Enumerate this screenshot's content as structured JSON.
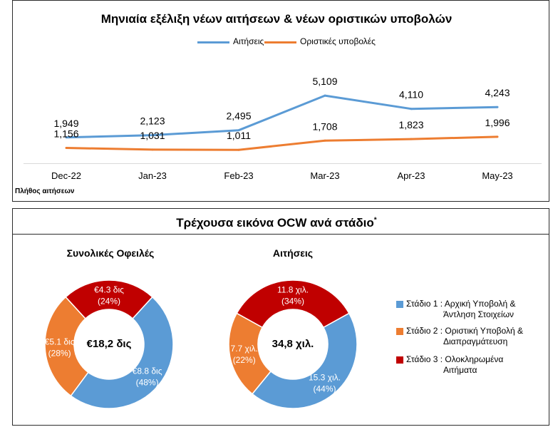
{
  "line_chart": {
    "title": "Μηνιαία εξέλιξη νέων αιτήσεων & νέων οριστικών υποβολών",
    "ylabel": "Πλήθος αιτήσεων",
    "legend": [
      "Αιτήσεις",
      "Οριστικές υποβολές"
    ],
    "colors": {
      "applications": "#5b9bd5",
      "submissions": "#ed7d31"
    }
  },
  "donut_section": {
    "title": "Τρέχουσα εικόνα OCW ανά στάδιο",
    "title_mark": "*",
    "left": {
      "title": "Συνολικές Οφειλές",
      "center": "€18,2 δις"
    },
    "right": {
      "title": "Αιτήσεις",
      "center": "34,8 χιλ."
    },
    "legend": [
      {
        "label": "Στάδιο 1 : Αρχική Υποβολή & Άντληση Στοιχείων",
        "lines": [
          "Στάδιο 1 : Αρχική Υποβολή &",
          "Άντληση Στοιχείων"
        ],
        "color": "#5b9bd5"
      },
      {
        "label": "Στάδιο 2 : Οριστική Υποβολή & Διαπραγμάτευση",
        "lines": [
          "Στάδιο 2 : Οριστική Υποβολή &",
          "Διαπραγμάτευση"
        ],
        "color": "#ed7d31"
      },
      {
        "label": "Στάδιο 3 : Ολοκληρωμένα Αιτήματα",
        "lines": [
          "Στάδιο 3 : Ολοκληρωμένα",
          "Αιτήματα"
        ],
        "color": "#c00000"
      }
    ]
  },
  "chart_data": [
    {
      "type": "line",
      "title": "Μηνιαία εξέλιξη νέων αιτήσεων & νέων οριστικών υποβολών",
      "xlabel": "",
      "ylabel": "Πλήθος αιτήσεων",
      "categories": [
        "Dec-22",
        "Jan-23",
        "Feb-23",
        "Mar-23",
        "Apr-23",
        "May-23"
      ],
      "series": [
        {
          "name": "Αιτήσεις",
          "values": [
            1949,
            2123,
            2495,
            5109,
            4110,
            4243
          ],
          "labels": [
            "1,949",
            "2,123",
            "2,495",
            "5,109",
            "4,110",
            "4,243"
          ],
          "color": "#5b9bd5"
        },
        {
          "name": "Οριστικές υποβολές",
          "values": [
            1156,
            1031,
            1011,
            1708,
            1823,
            1996
          ],
          "labels": [
            "1,156",
            "1,031",
            "1,011",
            "1,708",
            "1,823",
            "1,996"
          ],
          "color": "#ed7d31"
        }
      ],
      "ylim": [
        0,
        6000
      ],
      "grid": false,
      "legend_position": "top"
    },
    {
      "type": "pie",
      "title": "Συνολικές Οφειλές",
      "center_label": "€18,2 δις",
      "categories": [
        "Στάδιο 1 : Αρχική Υποβολή & Άντληση Στοιχείων",
        "Στάδιο 2 : Οριστική Υποβολή & Διαπραγμάτευση",
        "Στάδιο 3 : Ολοκληρωμένα Αιτήματα"
      ],
      "values": [
        8.8,
        5.1,
        4.3
      ],
      "percent": [
        48,
        28,
        24
      ],
      "labels": [
        [
          "€8.8 δις",
          "(48%)"
        ],
        [
          "€5.1 δις",
          "(28%)"
        ],
        [
          "€4.3 δις",
          "(24%)"
        ]
      ],
      "colors": [
        "#5b9bd5",
        "#ed7d31",
        "#c00000"
      ]
    },
    {
      "type": "pie",
      "title": "Αιτήσεις",
      "center_label": "34,8 χιλ.",
      "categories": [
        "Στάδιο 1 : Αρχική Υποβολή & Άντληση Στοιχείων",
        "Στάδιο 2 : Οριστική Υποβολή & Διαπραγμάτευση",
        "Στάδιο 3 : Ολοκληρωμένα Αιτήματα"
      ],
      "values": [
        15.3,
        7.7,
        11.8
      ],
      "percent": [
        44,
        22,
        34
      ],
      "labels": [
        [
          "15.3 χιλ.",
          "(44%)"
        ],
        [
          "7.7 χιλ.",
          "(22%)"
        ],
        [
          "11.8 χιλ.",
          "(34%)"
        ]
      ],
      "colors": [
        "#5b9bd5",
        "#ed7d31",
        "#c00000"
      ]
    }
  ]
}
